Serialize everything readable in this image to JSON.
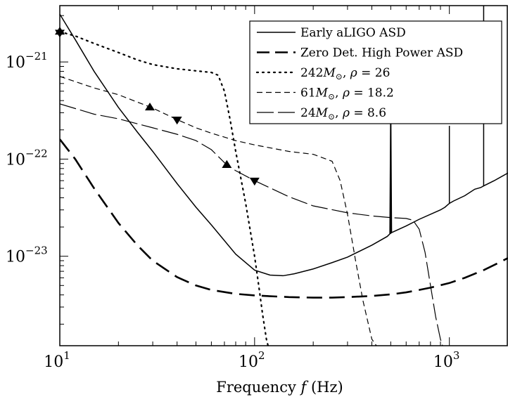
{
  "chart_data": {
    "type": "line",
    "xlabel": "Frequency f (Hz)",
    "x_scale": "log",
    "y_scale": "log",
    "xlim": [
      10,
      2000
    ],
    "ylim": [
      1.2e-24,
      3.8e-21
    ],
    "grid": false,
    "legend_position": "top-right",
    "x_ticks": [
      {
        "value": 10,
        "base": "10",
        "exp": "1"
      },
      {
        "value": 100,
        "base": "10",
        "exp": "2"
      },
      {
        "value": 1000,
        "base": "10",
        "exp": "3"
      }
    ],
    "y_ticks": [
      {
        "value": 1e-23,
        "base": "10",
        "exp": "−23"
      },
      {
        "value": 1e-22,
        "base": "10",
        "exp": "−22"
      },
      {
        "value": 1e-21,
        "base": "10",
        "exp": "−21"
      }
    ],
    "series": [
      {
        "name": "Early aLIGO ASD",
        "style": "solid",
        "width": 1.5,
        "x": [
          10,
          12,
          15,
          20,
          25,
          30,
          40,
          50,
          60,
          80,
          100,
          120,
          140,
          160,
          200,
          250,
          300,
          400,
          480,
          495,
          500,
          505,
          520,
          600,
          700,
          900,
          950,
          1000,
          1050,
          1200,
          1350,
          1400,
          1450,
          1500,
          1700,
          2000
        ],
        "y": [
          3.1e-21,
          1.7e-21,
          8e-22,
          3.4e-22,
          1.9e-22,
          1.2e-22,
          5.6e-23,
          3.2e-23,
          2.1e-23,
          1.05e-23,
          7.2e-24,
          6.4e-24,
          6.3e-24,
          6.6e-24,
          7.4e-24,
          8.6e-24,
          9.8e-24,
          1.3e-23,
          1.6e-23,
          1.7e-23,
          4.1e-22,
          1.75e-23,
          1.8e-23,
          2.05e-23,
          2.4e-23,
          3e-23,
          3.2e-23,
          3.5e-23,
          3.7e-23,
          4.2e-23,
          4.9e-23,
          5e-23,
          5.1e-23,
          5.3e-23,
          6e-23,
          7.2e-23
        ],
        "spikes": [
          {
            "x": 500,
            "base": 1.7e-23,
            "top": 4.1e-22
          },
          {
            "x": 1000,
            "base": 3.5e-23,
            "top": 2.2e-22
          },
          {
            "x": 1500,
            "base": 5.3e-23,
            "top": 3.8e-21
          }
        ]
      },
      {
        "name": "Zero Det. High Power ASD",
        "style": "longdash",
        "width": 2.6,
        "x": [
          10,
          12,
          15,
          20,
          25,
          30,
          40,
          50,
          60,
          80,
          100,
          130,
          150,
          200,
          250,
          300,
          400,
          500,
          600,
          700,
          800,
          1000,
          1200,
          1500,
          1800,
          2000
        ],
        "y": [
          1.6e-22,
          1e-22,
          5e-23,
          2.2e-23,
          1.3e-23,
          9e-24,
          6.1e-24,
          5e-24,
          4.5e-24,
          4.1e-24,
          3.95e-24,
          3.85e-24,
          3.8e-24,
          3.75e-24,
          3.75e-24,
          3.8e-24,
          3.9e-24,
          4.05e-24,
          4.25e-24,
          4.5e-24,
          4.75e-24,
          5.3e-24,
          6e-24,
          7.2e-24,
          8.6e-24,
          9.6e-24
        ]
      },
      {
        "name": "242M⊙, ρ = 26",
        "label_text": "242",
        "label_sub": "⊙",
        "label_rho": "ρ = 26",
        "style": "dotted",
        "width": 2.2,
        "x": [
          10,
          12,
          15,
          20,
          25,
          30,
          40,
          50,
          60,
          65,
          70,
          75,
          80,
          90,
          100,
          105,
          110,
          115,
          120
        ],
        "y": [
          2.05e-21,
          1.85e-21,
          1.55e-21,
          1.25e-21,
          1.05e-21,
          9.4e-22,
          8.5e-22,
          8.1e-22,
          7.8e-22,
          7.3e-22,
          5e-22,
          2.5e-22,
          1.2e-22,
          3.5e-23,
          1e-23,
          5e-24,
          2.5e-24,
          1.4e-24,
          1e-24
        ],
        "markers": [
          {
            "x": 10,
            "y": 2.05e-21,
            "dir": "up"
          },
          {
            "x": 10,
            "y": 2e-21,
            "dir": "down"
          }
        ]
      },
      {
        "name": "61M⊙, ρ = 18.2",
        "label_text": "61",
        "label_sub": "⊙",
        "label_rho": "ρ = 18.2",
        "style": "dashed",
        "width": 1.2,
        "x": [
          10,
          15,
          20,
          30,
          40,
          50,
          60,
          80,
          100,
          150,
          200,
          250,
          275,
          300,
          330,
          360,
          400,
          450
        ],
        "y": [
          7.1e-22,
          5.4e-22,
          4.6e-22,
          3.35e-22,
          2.55e-22,
          2.1e-22,
          1.85e-22,
          1.55e-22,
          1.4e-22,
          1.2e-22,
          1.12e-22,
          9.5e-23,
          6e-23,
          2.7e-23,
          9e-24,
          3.5e-24,
          1.4e-24,
          1e-24
        ],
        "markers": [
          {
            "x": 29,
            "y": 3.4e-22,
            "dir": "up"
          },
          {
            "x": 40,
            "y": 2.55e-22,
            "dir": "down"
          }
        ]
      },
      {
        "name": "24M⊙, ρ = 8.6",
        "label_text": "24",
        "label_sub": "⊙",
        "label_rho": "ρ = 8.6",
        "style": "longdash-thin",
        "width": 1.2,
        "x": [
          10,
          15,
          20,
          30,
          40,
          50,
          60,
          72,
          80,
          100,
          150,
          200,
          300,
          400,
          500,
          600,
          650,
          700,
          750,
          800,
          850,
          900,
          950
        ],
        "y": [
          3.7e-22,
          2.9e-22,
          2.6e-22,
          2.1e-22,
          1.8e-22,
          1.55e-22,
          1.25e-22,
          8.7e-23,
          7.6e-23,
          6e-23,
          4.1e-23,
          3.3e-23,
          2.8e-23,
          2.6e-23,
          2.5e-23,
          2.45e-23,
          2.35e-23,
          1.9e-23,
          1.1e-23,
          5e-24,
          2.4e-24,
          1.4e-24,
          1e-24
        ],
        "markers": [
          {
            "x": 72,
            "y": 8.7e-23,
            "dir": "up"
          },
          {
            "x": 100,
            "y": 6e-23,
            "dir": "down"
          }
        ]
      }
    ]
  }
}
